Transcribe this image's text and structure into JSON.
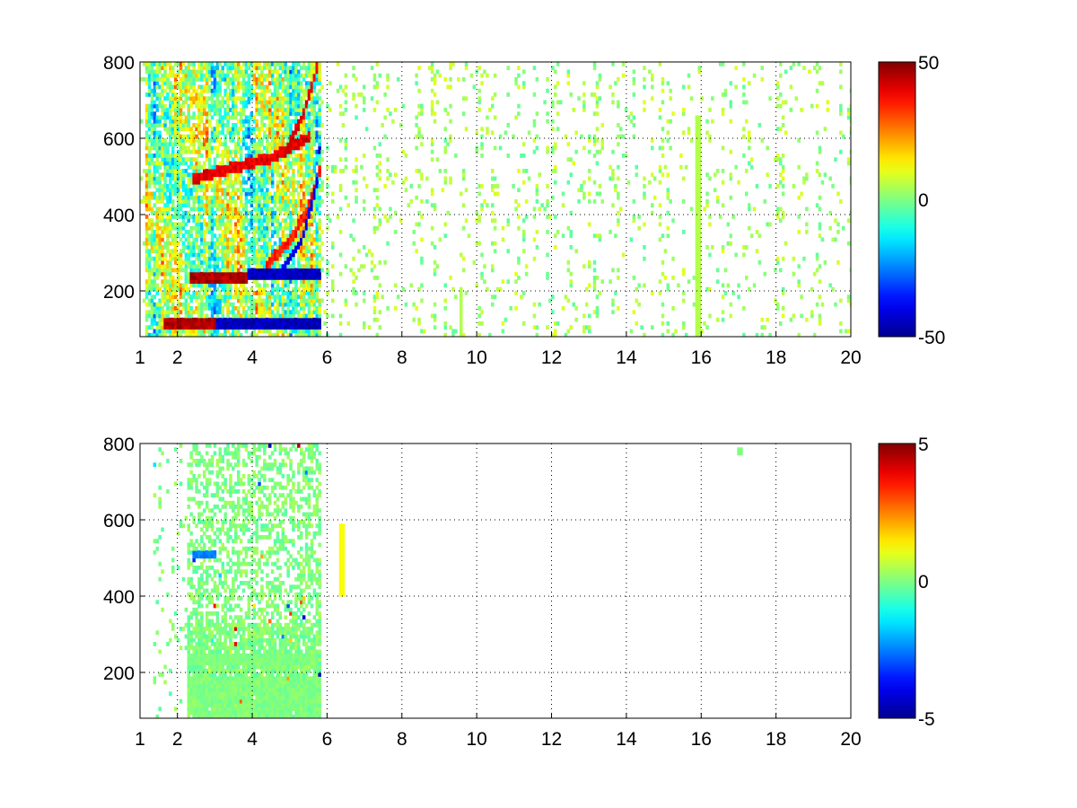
{
  "figure": {
    "background": "#ffffff"
  },
  "colormap": {
    "name": "jet",
    "stops": [
      "#00008f",
      "#0000ff",
      "#00ffff",
      "#ffff00",
      "#ff0000",
      "#800000"
    ]
  },
  "chart_data": [
    {
      "type": "heatmap",
      "title": "",
      "xlabel": "",
      "ylabel": "",
      "xlim": [
        1,
        20
      ],
      "ylim": [
        80,
        800
      ],
      "xticks": [
        1,
        2,
        4,
        6,
        8,
        10,
        12,
        14,
        16,
        18,
        20
      ],
      "yticks": [
        200,
        400,
        600,
        800
      ],
      "grid": true,
      "grid_style": "dotted",
      "colorbar": {
        "min": -50,
        "max": 50,
        "ticks": [
          -50,
          0,
          50
        ],
        "placement": "right"
      },
      "dense_region_x": [
        1.1,
        5.8
      ],
      "sparse_region_x": [
        5.8,
        20
      ],
      "features": [
        {
          "kind": "horizontal-band",
          "y": 110,
          "x": [
            2.3,
            5.8
          ],
          "value": -45
        },
        {
          "kind": "horizontal-band",
          "y": 110,
          "x": [
            1.6,
            3.0
          ],
          "value": 45
        },
        {
          "kind": "horizontal-band",
          "y": 230,
          "x": [
            2.3,
            3.8
          ],
          "value": 45
        },
        {
          "kind": "horizontal-band",
          "y": 240,
          "x": [
            3.8,
            5.8
          ],
          "value": -45
        },
        {
          "kind": "curve",
          "points": [
            [
              2.4,
              490
            ],
            [
              3.5,
              520
            ],
            [
              4.5,
              545
            ],
            [
              5.5,
              600
            ]
          ],
          "value": 40
        },
        {
          "kind": "curve",
          "points": [
            [
              4.3,
              260
            ],
            [
              5.0,
              330
            ],
            [
              5.5,
              420
            ],
            [
              5.8,
              520
            ]
          ],
          "value": 35
        },
        {
          "kind": "curve",
          "points": [
            [
              4.6,
              230
            ],
            [
              5.3,
              330
            ],
            [
              5.7,
              480
            ],
            [
              5.8,
              620
            ]
          ],
          "value": -40
        },
        {
          "kind": "curve",
          "points": [
            [
              4.8,
              550
            ],
            [
              5.3,
              650
            ],
            [
              5.7,
              780
            ]
          ],
          "value": 40
        },
        {
          "kind": "vertical-stripe",
          "x": 15.9,
          "y": [
            80,
            650
          ],
          "value": 5
        },
        {
          "kind": "vertical-stripe",
          "x": 9.55,
          "y": [
            80,
            200
          ],
          "value": 5
        }
      ]
    },
    {
      "type": "heatmap",
      "title": "",
      "xlabel": "",
      "ylabel": "",
      "xlim": [
        1,
        20
      ],
      "ylim": [
        80,
        800
      ],
      "xticks": [
        1,
        2,
        4,
        6,
        8,
        10,
        12,
        14,
        16,
        18,
        20
      ],
      "yticks": [
        200,
        400,
        600,
        800
      ],
      "grid": true,
      "grid_style": "dotted",
      "colorbar": {
        "min": -5,
        "max": 5,
        "ticks": [
          -5,
          0,
          5
        ],
        "placement": "right"
      },
      "dense_region_x": [
        1.3,
        5.8
      ],
      "sparse_region_x": [
        5.8,
        20
      ],
      "features": [
        {
          "kind": "block",
          "x": [
            2.3,
            5.8
          ],
          "y": [
            80,
            180
          ],
          "value": 0
        },
        {
          "kind": "horizontal-band",
          "y": 230,
          "x": [
            2.3,
            5.5
          ],
          "value": 0
        },
        {
          "kind": "horizontal-band",
          "y": 505,
          "x": [
            2.4,
            3.0
          ],
          "value": -2.5
        },
        {
          "kind": "vertical-stripe",
          "x": 6.35,
          "y": [
            400,
            580
          ],
          "value": 1.2
        },
        {
          "kind": "point",
          "x": 17.0,
          "y": 775,
          "value": 0
        }
      ]
    }
  ]
}
